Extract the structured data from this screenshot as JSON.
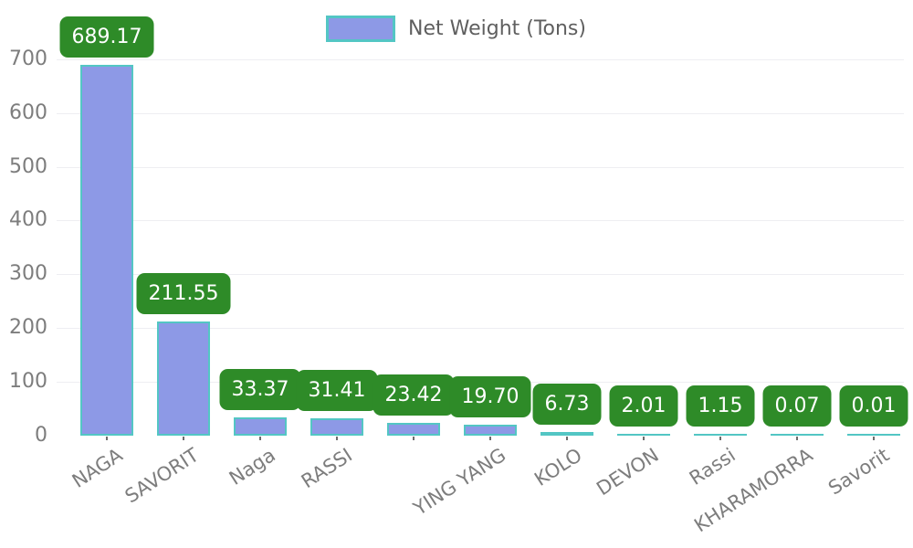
{
  "legend": {
    "label": "Net Weight (Tons)"
  },
  "colors": {
    "background": "#ffffff",
    "bar_fill": "#8d99e6",
    "bar_edge": "#53c6c4",
    "value_label_bg": "#2e8b28",
    "value_label_text": "#ffffff",
    "axis_tick_text": "#7d7d7d",
    "legend_text": "#5f5f5f"
  },
  "chart_data": {
    "type": "bar",
    "title": "",
    "xlabel": "",
    "ylabel": "",
    "series_name": "Net Weight (Tons)",
    "categories": [
      "NAGA",
      "SAVORIT",
      "Naga",
      "RASSI",
      "",
      "YING YANG",
      "KOLO",
      "DEVON",
      "Rassi",
      "KHARAMORRA",
      "Savorit"
    ],
    "values": [
      689.17,
      211.55,
      33.37,
      31.41,
      23.42,
      19.7,
      6.73,
      2.01,
      1.15,
      0.07,
      0.01
    ],
    "value_labels": [
      "689.17",
      "211.55",
      "33.37",
      "31.41",
      "23.42",
      "19.70",
      "6.73",
      "2.01",
      "1.15",
      "0.07",
      "0.01"
    ],
    "yticks": [
      0,
      100,
      200,
      300,
      400,
      500,
      600,
      700
    ],
    "ytick_labels": [
      "0",
      "100",
      "200",
      "300",
      "400",
      "500",
      "600",
      "700"
    ],
    "ylim": [
      0,
      700
    ],
    "grid": "faint-horizontal",
    "legend_position": "top-center",
    "xtick_rotation_deg": 33
  }
}
